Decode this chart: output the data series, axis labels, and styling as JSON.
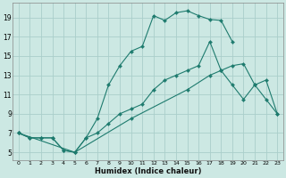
{
  "xlabel": "Humidex (Indice chaleur)",
  "bg_color": "#cce8e3",
  "grid_color": "#aaceca",
  "line_color": "#1e7b6e",
  "xlim": [
    -0.5,
    23.5
  ],
  "ylim": [
    4.2,
    20.5
  ],
  "xticks": [
    0,
    1,
    2,
    3,
    4,
    5,
    6,
    7,
    8,
    9,
    10,
    11,
    12,
    13,
    14,
    15,
    16,
    17,
    18,
    19,
    20,
    21,
    22,
    23
  ],
  "yticks": [
    5,
    7,
    9,
    11,
    13,
    15,
    17,
    19
  ],
  "line_top_x": [
    0,
    1,
    2,
    3,
    4,
    5,
    6,
    7,
    8,
    9,
    10,
    11,
    12,
    13,
    14,
    15,
    16,
    17,
    18,
    19
  ],
  "line_top_y": [
    7.0,
    6.5,
    6.5,
    6.5,
    5.2,
    5.0,
    6.5,
    8.5,
    12.0,
    14.0,
    15.5,
    16.0,
    19.2,
    18.7,
    19.5,
    19.7,
    19.2,
    18.8,
    18.7,
    16.5
  ],
  "line_mid_x": [
    0,
    1,
    2,
    3,
    4,
    5,
    6,
    7,
    8,
    9,
    10,
    11,
    12,
    13,
    14,
    15,
    16,
    17,
    18,
    19,
    20,
    21,
    22,
    23
  ],
  "line_mid_y": [
    7.0,
    6.5,
    6.5,
    6.5,
    5.2,
    5.0,
    6.5,
    7.0,
    8.0,
    9.0,
    9.5,
    10.0,
    11.5,
    12.5,
    13.0,
    13.5,
    14.0,
    16.5,
    13.5,
    12.0,
    10.5,
    12.0,
    12.5,
    9.0
  ],
  "line_bot_x": [
    0,
    5,
    10,
    15,
    17,
    18,
    19,
    20,
    21,
    22,
    23
  ],
  "line_bot_y": [
    7.0,
    5.0,
    8.5,
    11.5,
    13.0,
    13.5,
    14.0,
    14.2,
    12.0,
    10.5,
    9.0
  ]
}
